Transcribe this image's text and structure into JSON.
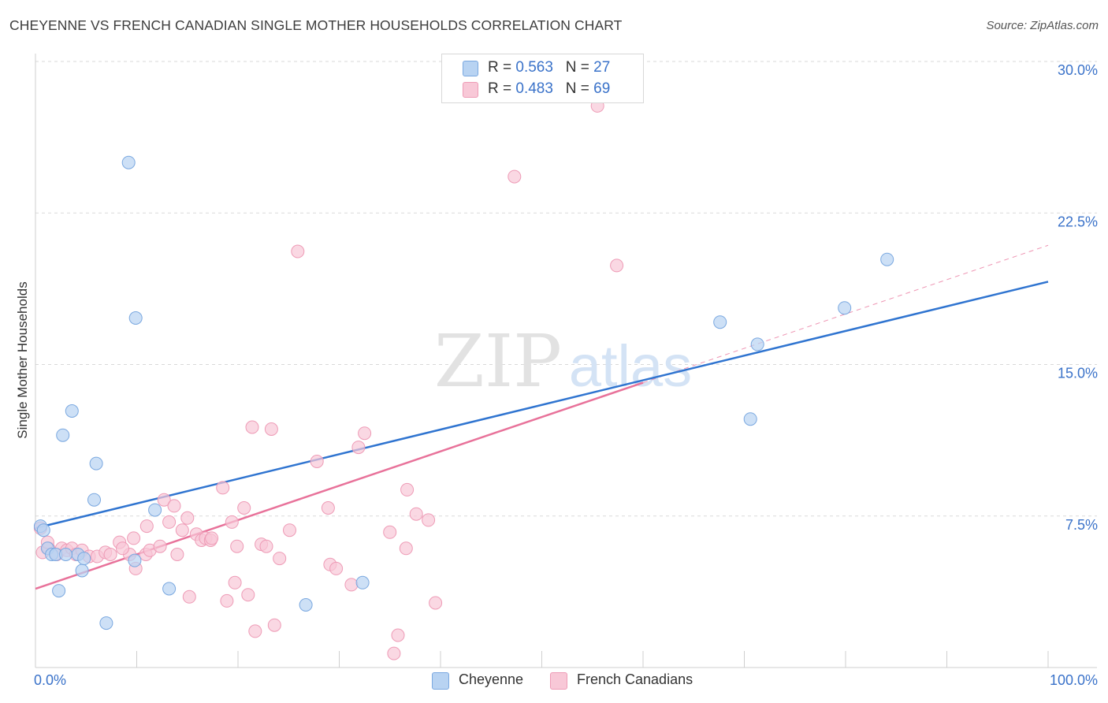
{
  "header": {
    "title": "CHEYENNE VS FRENCH CANADIAN SINGLE MOTHER HOUSEHOLDS CORRELATION CHART",
    "source": "Source: ZipAtlas.com"
  },
  "watermark": {
    "zip": "ZIP",
    "atlas": "atlas"
  },
  "stats": {
    "r_label": "R =",
    "n_label": "N =",
    "rows": [
      {
        "name": "Cheyenne",
        "r": "0.563",
        "n": "27"
      },
      {
        "name": "French Canadians",
        "r": "0.483",
        "n": "69"
      }
    ]
  },
  "colors": {
    "cheyenne_fill": "#b8d3f2",
    "cheyenne_stroke": "#7aa8e0",
    "cheyenne_line": "#2f74d0",
    "french_fill": "#f8c8d7",
    "french_stroke": "#ee9bb6",
    "french_line": "#e8729a",
    "tick_label": "#3a72c9",
    "grid": "#d9d9d9"
  },
  "chart_data": {
    "type": "scatter",
    "title": "CHEYENNE VS FRENCH CANADIAN SINGLE MOTHER HOUSEHOLDS CORRELATION CHART",
    "xlabel": "",
    "ylabel": "Single Mother Households",
    "xlim": [
      0,
      100
    ],
    "ylim": [
      0,
      30
    ],
    "x_tick_labels": [
      "0.0%",
      "100.0%"
    ],
    "y_ticks": [
      7.5,
      15.0,
      22.5,
      30.0
    ],
    "y_tick_labels": [
      "7.5%",
      "15.0%",
      "22.5%",
      "30.0%"
    ],
    "grid": true,
    "legend_position": "bottom-center",
    "series": [
      {
        "name": "Cheyenne",
        "trend": {
          "x": [
            0,
            100
          ],
          "y": [
            6.9,
            19.1
          ]
        },
        "points": [
          [
            0.5,
            7.0
          ],
          [
            0.8,
            6.8
          ],
          [
            1.2,
            5.9
          ],
          [
            1.6,
            5.6
          ],
          [
            2.0,
            5.6
          ],
          [
            2.3,
            3.8
          ],
          [
            2.7,
            11.5
          ],
          [
            3.6,
            12.7
          ],
          [
            4.2,
            5.6
          ],
          [
            4.6,
            4.8
          ],
          [
            4.8,
            5.4
          ],
          [
            5.8,
            8.3
          ],
          [
            6.0,
            10.1
          ],
          [
            7.0,
            2.2
          ],
          [
            9.2,
            25.0
          ],
          [
            9.8,
            5.3
          ],
          [
            9.9,
            17.3
          ],
          [
            11.8,
            7.8
          ],
          [
            13.2,
            3.9
          ],
          [
            26.7,
            3.1
          ],
          [
            32.3,
            4.2
          ],
          [
            67.6,
            17.1
          ],
          [
            70.6,
            12.3
          ],
          [
            71.3,
            16.0
          ],
          [
            79.9,
            17.8
          ],
          [
            84.1,
            20.2
          ],
          [
            3.0,
            5.6
          ]
        ]
      },
      {
        "name": "French Canadians",
        "trend": {
          "x": [
            0,
            60
          ],
          "y": [
            3.9,
            14.1
          ]
        },
        "trend_dashed": {
          "x": [
            60,
            100
          ],
          "y": [
            14.1,
            20.9
          ]
        },
        "points": [
          [
            0.5,
            6.9
          ],
          [
            0.7,
            5.7
          ],
          [
            1.3,
            5.9
          ],
          [
            2.1,
            5.6
          ],
          [
            2.6,
            5.9
          ],
          [
            3.1,
            5.8
          ],
          [
            3.6,
            5.9
          ],
          [
            4.0,
            5.6
          ],
          [
            4.6,
            5.8
          ],
          [
            5.3,
            5.5
          ],
          [
            6.1,
            5.5
          ],
          [
            6.9,
            5.7
          ],
          [
            7.4,
            5.6
          ],
          [
            8.3,
            6.2
          ],
          [
            9.7,
            6.4
          ],
          [
            9.3,
            5.6
          ],
          [
            8.6,
            5.9
          ],
          [
            9.9,
            4.9
          ],
          [
            10.9,
            5.6
          ],
          [
            11.3,
            5.8
          ],
          [
            11.0,
            7.0
          ],
          [
            12.3,
            6.0
          ],
          [
            12.7,
            8.3
          ],
          [
            13.2,
            7.2
          ],
          [
            13.7,
            8.0
          ],
          [
            14.0,
            5.6
          ],
          [
            14.5,
            6.8
          ],
          [
            15.0,
            7.4
          ],
          [
            15.2,
            3.5
          ],
          [
            15.9,
            6.6
          ],
          [
            16.4,
            6.3
          ],
          [
            16.8,
            6.4
          ],
          [
            17.3,
            6.3
          ],
          [
            17.4,
            6.4
          ],
          [
            18.5,
            8.9
          ],
          [
            18.9,
            3.3
          ],
          [
            19.4,
            7.2
          ],
          [
            19.7,
            4.2
          ],
          [
            19.9,
            6.0
          ],
          [
            20.6,
            7.9
          ],
          [
            21.0,
            3.6
          ],
          [
            21.4,
            11.9
          ],
          [
            21.7,
            1.8
          ],
          [
            22.3,
            6.1
          ],
          [
            22.8,
            6.0
          ],
          [
            23.3,
            11.8
          ],
          [
            23.6,
            2.1
          ],
          [
            24.1,
            5.4
          ],
          [
            25.1,
            6.8
          ],
          [
            25.9,
            20.6
          ],
          [
            27.8,
            10.2
          ],
          [
            28.9,
            7.9
          ],
          [
            29.1,
            5.1
          ],
          [
            29.7,
            4.9
          ],
          [
            31.2,
            4.1
          ],
          [
            31.9,
            10.9
          ],
          [
            32.5,
            11.6
          ],
          [
            35.0,
            6.7
          ],
          [
            35.4,
            0.7
          ],
          [
            35.8,
            1.6
          ],
          [
            36.6,
            5.9
          ],
          [
            36.7,
            8.8
          ],
          [
            37.6,
            7.6
          ],
          [
            38.8,
            7.3
          ],
          [
            39.5,
            3.2
          ],
          [
            47.3,
            24.3
          ],
          [
            55.5,
            27.8
          ],
          [
            57.4,
            19.9
          ],
          [
            1.2,
            6.2
          ]
        ]
      }
    ]
  }
}
